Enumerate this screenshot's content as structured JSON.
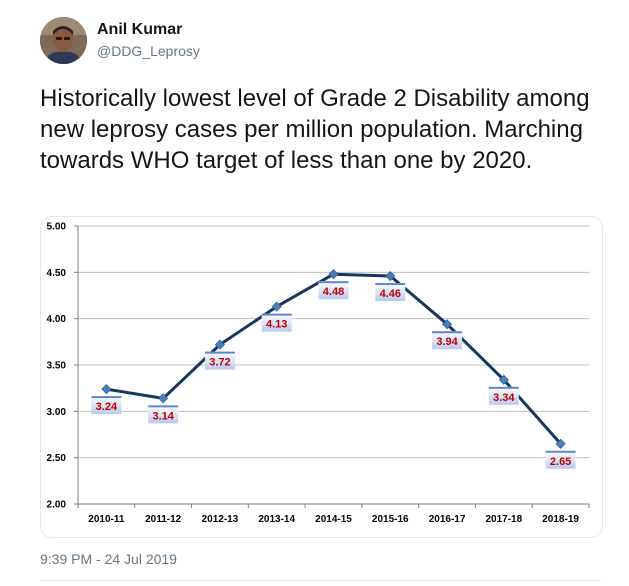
{
  "tweet": {
    "author_name": "Anil Kumar",
    "author_handle": "@DDG_Leprosy",
    "text": "Historically lowest level of Grade 2 Disability among new leprosy cases per million population. Marching towards WHO target of less than one by 2020.",
    "timestamp": "9:39 PM - 24 Jul 2019"
  },
  "colors": {
    "line": "#17375e",
    "label_text": "#c00000",
    "label_box_top": "#ffffff",
    "label_box_bottom": "#b8c8ee",
    "label_box_cap": "#5d86cf",
    "grid": "#c0c0c0"
  },
  "chart_data": {
    "type": "line",
    "title": "",
    "xlabel": "",
    "ylabel": "",
    "categories": [
      "2010-11",
      "2011-12",
      "2012-13",
      "2013-14",
      "2014-15",
      "2015-16",
      "2016-17",
      "2017-18",
      "2018-19"
    ],
    "values": [
      3.24,
      3.14,
      3.72,
      4.13,
      4.48,
      4.46,
      3.94,
      3.34,
      2.65
    ],
    "value_labels": [
      "3.24",
      "3.14",
      "3.72",
      "4.13",
      "4.48",
      "4.46",
      "3.94",
      "3.34",
      "2.65"
    ],
    "ylim": [
      2.0,
      5.0
    ],
    "yticks": [
      "2.00",
      "2.50",
      "3.00",
      "3.50",
      "4.00",
      "4.50",
      "5.00"
    ],
    "grid": true,
    "marker": "diamond"
  }
}
